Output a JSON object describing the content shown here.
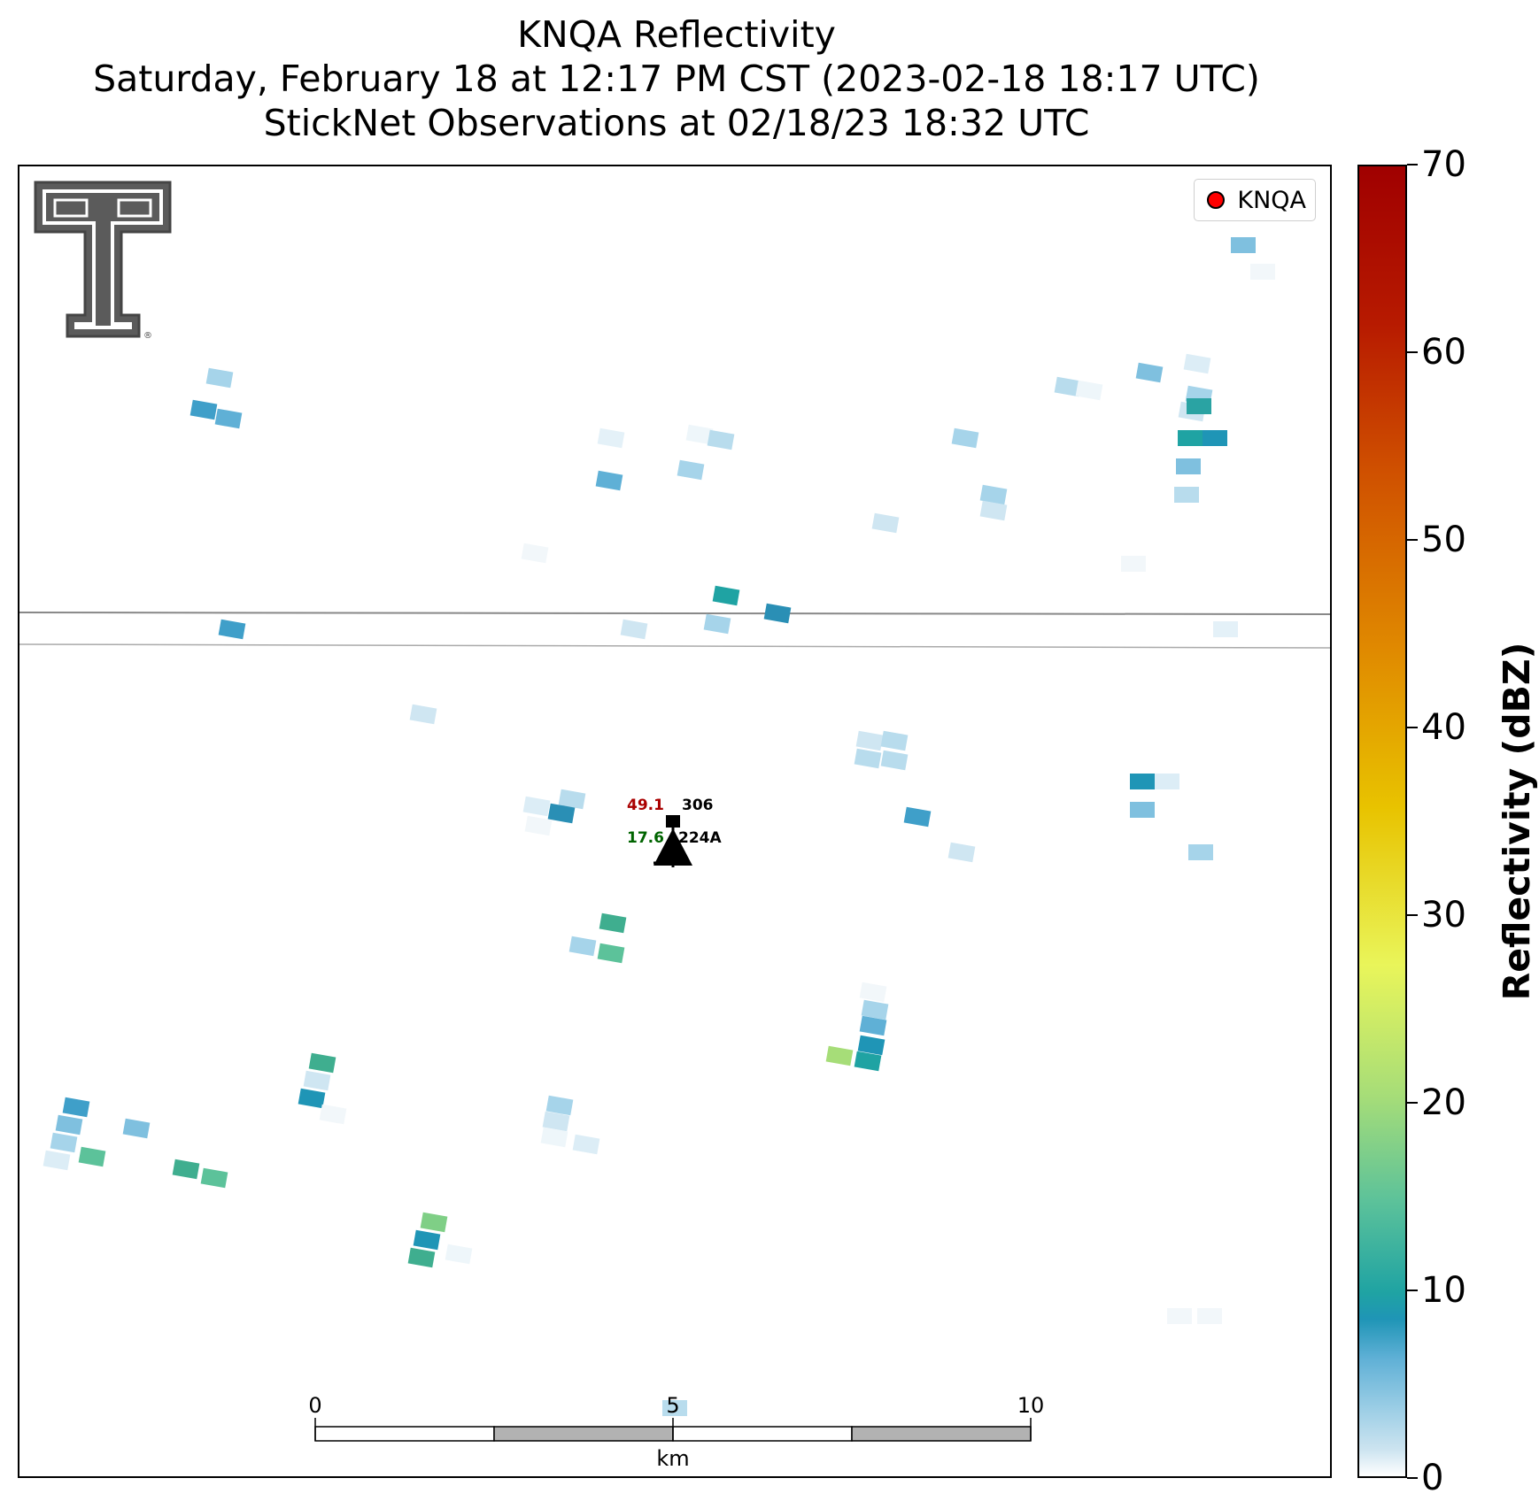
{
  "titles": {
    "line1": "KNQA Reflectivity",
    "line2": "Saturday, February 18 at 12:17 PM CST (2023-02-18 18:17 UTC)",
    "line3": "StickNet Observations at 02/18/23 18:32 UTC"
  },
  "legend": {
    "label": "KNQA",
    "marker_color": "#ff0000"
  },
  "station": {
    "temperature": "49.1",
    "temperature_color": "#aa0000",
    "dewpoint": "17.6",
    "dewpoint_color": "#006400",
    "pressure_code": "306",
    "station_id": "224A"
  },
  "scale_bar": {
    "ticks": [
      "0",
      "5",
      "10"
    ],
    "unit": "km"
  },
  "colorbar": {
    "title": "Reflectivity (dBZ)",
    "range": [
      0,
      70
    ],
    "ticks": [
      "0",
      "10",
      "20",
      "30",
      "40",
      "50",
      "60",
      "70"
    ]
  },
  "logo": {
    "name": "Texas Tech double T"
  }
}
